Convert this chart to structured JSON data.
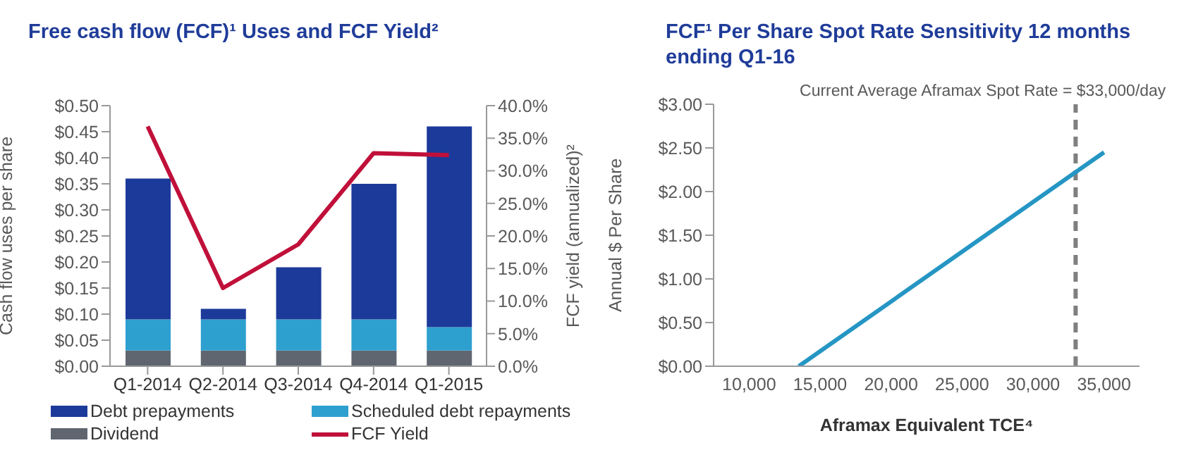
{
  "chart_data": [
    {
      "type": "bar",
      "title": "Free cash flow (FCF)¹ Uses and FCF Yield²",
      "ylabel": "Cash flow uses per share",
      "y2label": "FCF yield (annualized)²",
      "categories": [
        "Q1-2014",
        "Q2-2014",
        "Q3-2014",
        "Q4-2014",
        "Q1-2015"
      ],
      "stacked": true,
      "series": [
        {
          "name": "Dividend",
          "color": "#5f6670",
          "values": [
            0.03,
            0.03,
            0.03,
            0.03,
            0.03
          ]
        },
        {
          "name": "Scheduled debt repayments",
          "color": "#2ea0cf",
          "values": [
            0.06,
            0.06,
            0.06,
            0.06,
            0.045
          ]
        },
        {
          "name": "Debt prepayments",
          "color": "#1c3a9a",
          "values": [
            0.27,
            0.02,
            0.1,
            0.26,
            0.385
          ]
        },
        {
          "name": "FCF Yield",
          "type": "line",
          "axis": "y2",
          "color": "#c0103a",
          "values": [
            36.8,
            12.0,
            18.7,
            32.7,
            32.4
          ]
        }
      ],
      "ylim": [
        0,
        0.5
      ],
      "yticks": [
        {
          "value": 0,
          "label": "$0.00"
        },
        {
          "value": 0.05,
          "label": "$0.05"
        },
        {
          "value": 0.1,
          "label": "$0.10"
        },
        {
          "value": 0.15,
          "label": "$0.15"
        },
        {
          "value": 0.2,
          "label": "$0.20"
        },
        {
          "value": 0.25,
          "label": "$0.25"
        },
        {
          "value": 0.3,
          "label": "$0.30"
        },
        {
          "value": 0.35,
          "label": "$0.35"
        },
        {
          "value": 0.4,
          "label": "$0.40"
        },
        {
          "value": 0.45,
          "label": "$0.45"
        },
        {
          "value": 0.5,
          "label": "$0.50"
        }
      ],
      "y2lim": [
        0,
        40
      ],
      "y2ticks": [
        {
          "value": 0,
          "label": "0.0%"
        },
        {
          "value": 5,
          "label": "5.0%"
        },
        {
          "value": 10,
          "label": "10.0%"
        },
        {
          "value": 15,
          "label": "15.0%"
        },
        {
          "value": 20,
          "label": "20.0%"
        },
        {
          "value": 25,
          "label": "25.0%"
        },
        {
          "value": 30,
          "label": "30.0%"
        },
        {
          "value": 35,
          "label": "35.0%"
        },
        {
          "value": 40,
          "label": "40.0%"
        }
      ],
      "grid": false,
      "legend": "bottom",
      "marker": "none"
    },
    {
      "type": "line",
      "title": "FCF¹ Per Share Spot Rate Sensitivity 12 months ending Q1-16",
      "xlabel": "Aframax Equivalent TCE⁴",
      "ylabel": "Annual $ Per Share",
      "series": [
        {
          "color": "#2596c4",
          "x": [
            13500,
            35000
          ],
          "values": [
            0,
            2.45
          ]
        }
      ],
      "xlim": [
        7500,
        37500
      ],
      "xticks": [
        {
          "value": 10000,
          "label": "10,000"
        },
        {
          "value": 15000,
          "label": "15,000"
        },
        {
          "value": 20000,
          "label": "20,000"
        },
        {
          "value": 25000,
          "label": "25,000"
        },
        {
          "value": 30000,
          "label": "30,000"
        },
        {
          "value": 35000,
          "label": "35,000"
        }
      ],
      "ylim": [
        0,
        3
      ],
      "yticks": [
        {
          "value": 0,
          "label": "$0.00"
        },
        {
          "value": 0.5,
          "label": "$0.50"
        },
        {
          "value": 1,
          "label": "$1.00"
        },
        {
          "value": 1.5,
          "label": "$1.50"
        },
        {
          "value": 2,
          "label": "$2.00"
        },
        {
          "value": 2.5,
          "label": "$2.50"
        },
        {
          "value": 3,
          "label": "$3.00"
        }
      ],
      "ref_lines": [
        {
          "axis": "x",
          "value": 33000,
          "label": "Current Average Aframax Spot Rate = $33,000/day",
          "color": "#7f7f7f",
          "line_style": "dashed"
        }
      ],
      "grid": false,
      "marker": "none"
    }
  ]
}
